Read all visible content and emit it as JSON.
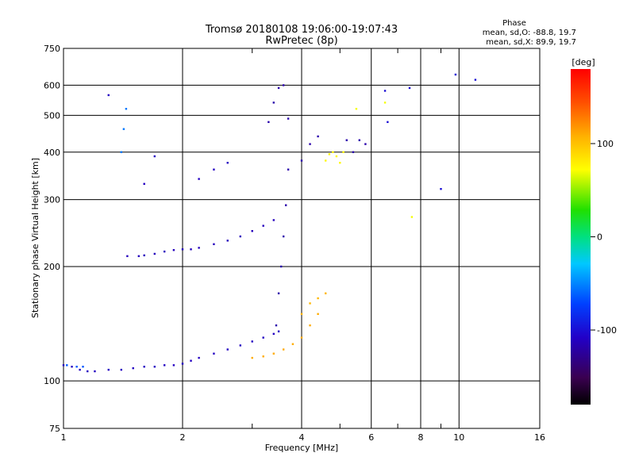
{
  "header": {
    "title_line1": "Tromsø 20180108 19:06:00-19:07:43",
    "title_line2": "RwPretec (8p)",
    "stats_title": "Phase",
    "stats_o": "mean, sd,O: -88.8, 19.7",
    "stats_x": "mean, sd,X: 89.9, 19.7"
  },
  "colorbar": {
    "unit_label": "[deg]",
    "ticks": [
      "100",
      "0",
      "-100"
    ]
  },
  "chart_data": {
    "type": "scatter",
    "xlabel": "Frequency [MHz]",
    "ylabel": "Stationary phase Virtual Height [km]",
    "x_scale": "log",
    "y_scale": "log",
    "xlim": [
      1,
      16
    ],
    "ylim": [
      75,
      750
    ],
    "x_ticks": [
      1,
      2,
      4,
      6,
      8,
      10,
      16
    ],
    "x_tick_labels": [
      "1",
      "2",
      "4",
      "6",
      "8",
      "10",
      "16"
    ],
    "x_minor_ticks": [
      3,
      5,
      7,
      9
    ],
    "y_ticks": [
      75,
      100,
      200,
      300,
      400,
      500,
      600,
      750
    ],
    "y_tick_labels": [
      "75",
      "100",
      "200",
      "300",
      "400",
      "500",
      "600",
      "750"
    ],
    "grid": true,
    "colorbar_range": [
      -180,
      180
    ],
    "groups": [
      {
        "x": [
          1.0,
          1.05,
          1.1,
          1.15,
          1.2,
          1.3,
          1.4,
          1.5,
          1.6,
          1.7,
          1.8,
          1.9,
          2.0,
          2.1,
          2.2,
          2.4,
          2.6,
          2.8,
          3.0,
          3.2,
          3.4,
          3.5
        ],
        "y": [
          110,
          109,
          107,
          106,
          106,
          107,
          107,
          108,
          109,
          109,
          110,
          110,
          111,
          113,
          115,
          118,
          121,
          124,
          127,
          130,
          133,
          135
        ],
        "phase": -110
      },
      {
        "x": [
          1.02,
          1.08,
          1.12
        ],
        "y": [
          110,
          109,
          109
        ],
        "phase": -65
      },
      {
        "x": [
          1.45,
          1.55,
          1.6,
          1.7,
          1.8,
          1.9,
          2.0,
          2.1,
          2.2,
          2.4,
          2.6,
          2.8,
          3.0,
          3.2,
          3.4
        ],
        "y": [
          213,
          213,
          214,
          216,
          219,
          221,
          222,
          222,
          224,
          229,
          234,
          240,
          248,
          256,
          265
        ],
        "phase": -112
      },
      {
        "x": [
          3.45,
          3.5,
          3.55,
          3.6,
          3.65,
          3.7
        ],
        "y": [
          140,
          170,
          200,
          240,
          290,
          360
        ],
        "phase": -118
      },
      {
        "x": [
          3.3,
          3.4,
          3.5,
          3.6,
          3.7
        ],
        "y": [
          480,
          540,
          590,
          600,
          490
        ],
        "phase": -118
      },
      {
        "x": [
          3.0,
          3.2,
          3.4,
          3.6,
          3.8,
          4.0,
          4.2,
          4.4
        ],
        "y": [
          115,
          116,
          118,
          121,
          125,
          130,
          140,
          150
        ],
        "phase": 110
      },
      {
        "x": [
          4.0,
          4.2,
          4.4,
          4.6
        ],
        "y": [
          150,
          160,
          165,
          170
        ],
        "phase": 105
      },
      {
        "x": [
          4.6,
          4.7,
          4.8,
          4.9,
          5.0,
          5.1
        ],
        "y": [
          380,
          395,
          400,
          390,
          375,
          400
        ],
        "phase": 75
      },
      {
        "x": [
          4.0,
          4.2,
          4.4,
          5.2,
          5.4,
          5.6,
          5.8
        ],
        "y": [
          380,
          420,
          440,
          430,
          400,
          430,
          420
        ],
        "phase": -118
      },
      {
        "x": [
          1.4,
          1.42,
          1.44
        ],
        "y": [
          400,
          460,
          520
        ],
        "phase": -55
      },
      {
        "x": [
          1.3,
          1.6,
          1.7,
          2.2,
          2.4,
          2.6
        ],
        "y": [
          565,
          330,
          390,
          340,
          360,
          375
        ],
        "phase": -110
      },
      {
        "x": [
          6.5,
          6.6,
          7.5,
          9.0,
          9.8,
          11.0
        ],
        "y": [
          580,
          480,
          590,
          320,
          640,
          620
        ],
        "phase": -100
      },
      {
        "x": [
          5.5,
          6.5,
          7.6
        ],
        "y": [
          520,
          540,
          270
        ],
        "phase": 70
      }
    ]
  }
}
